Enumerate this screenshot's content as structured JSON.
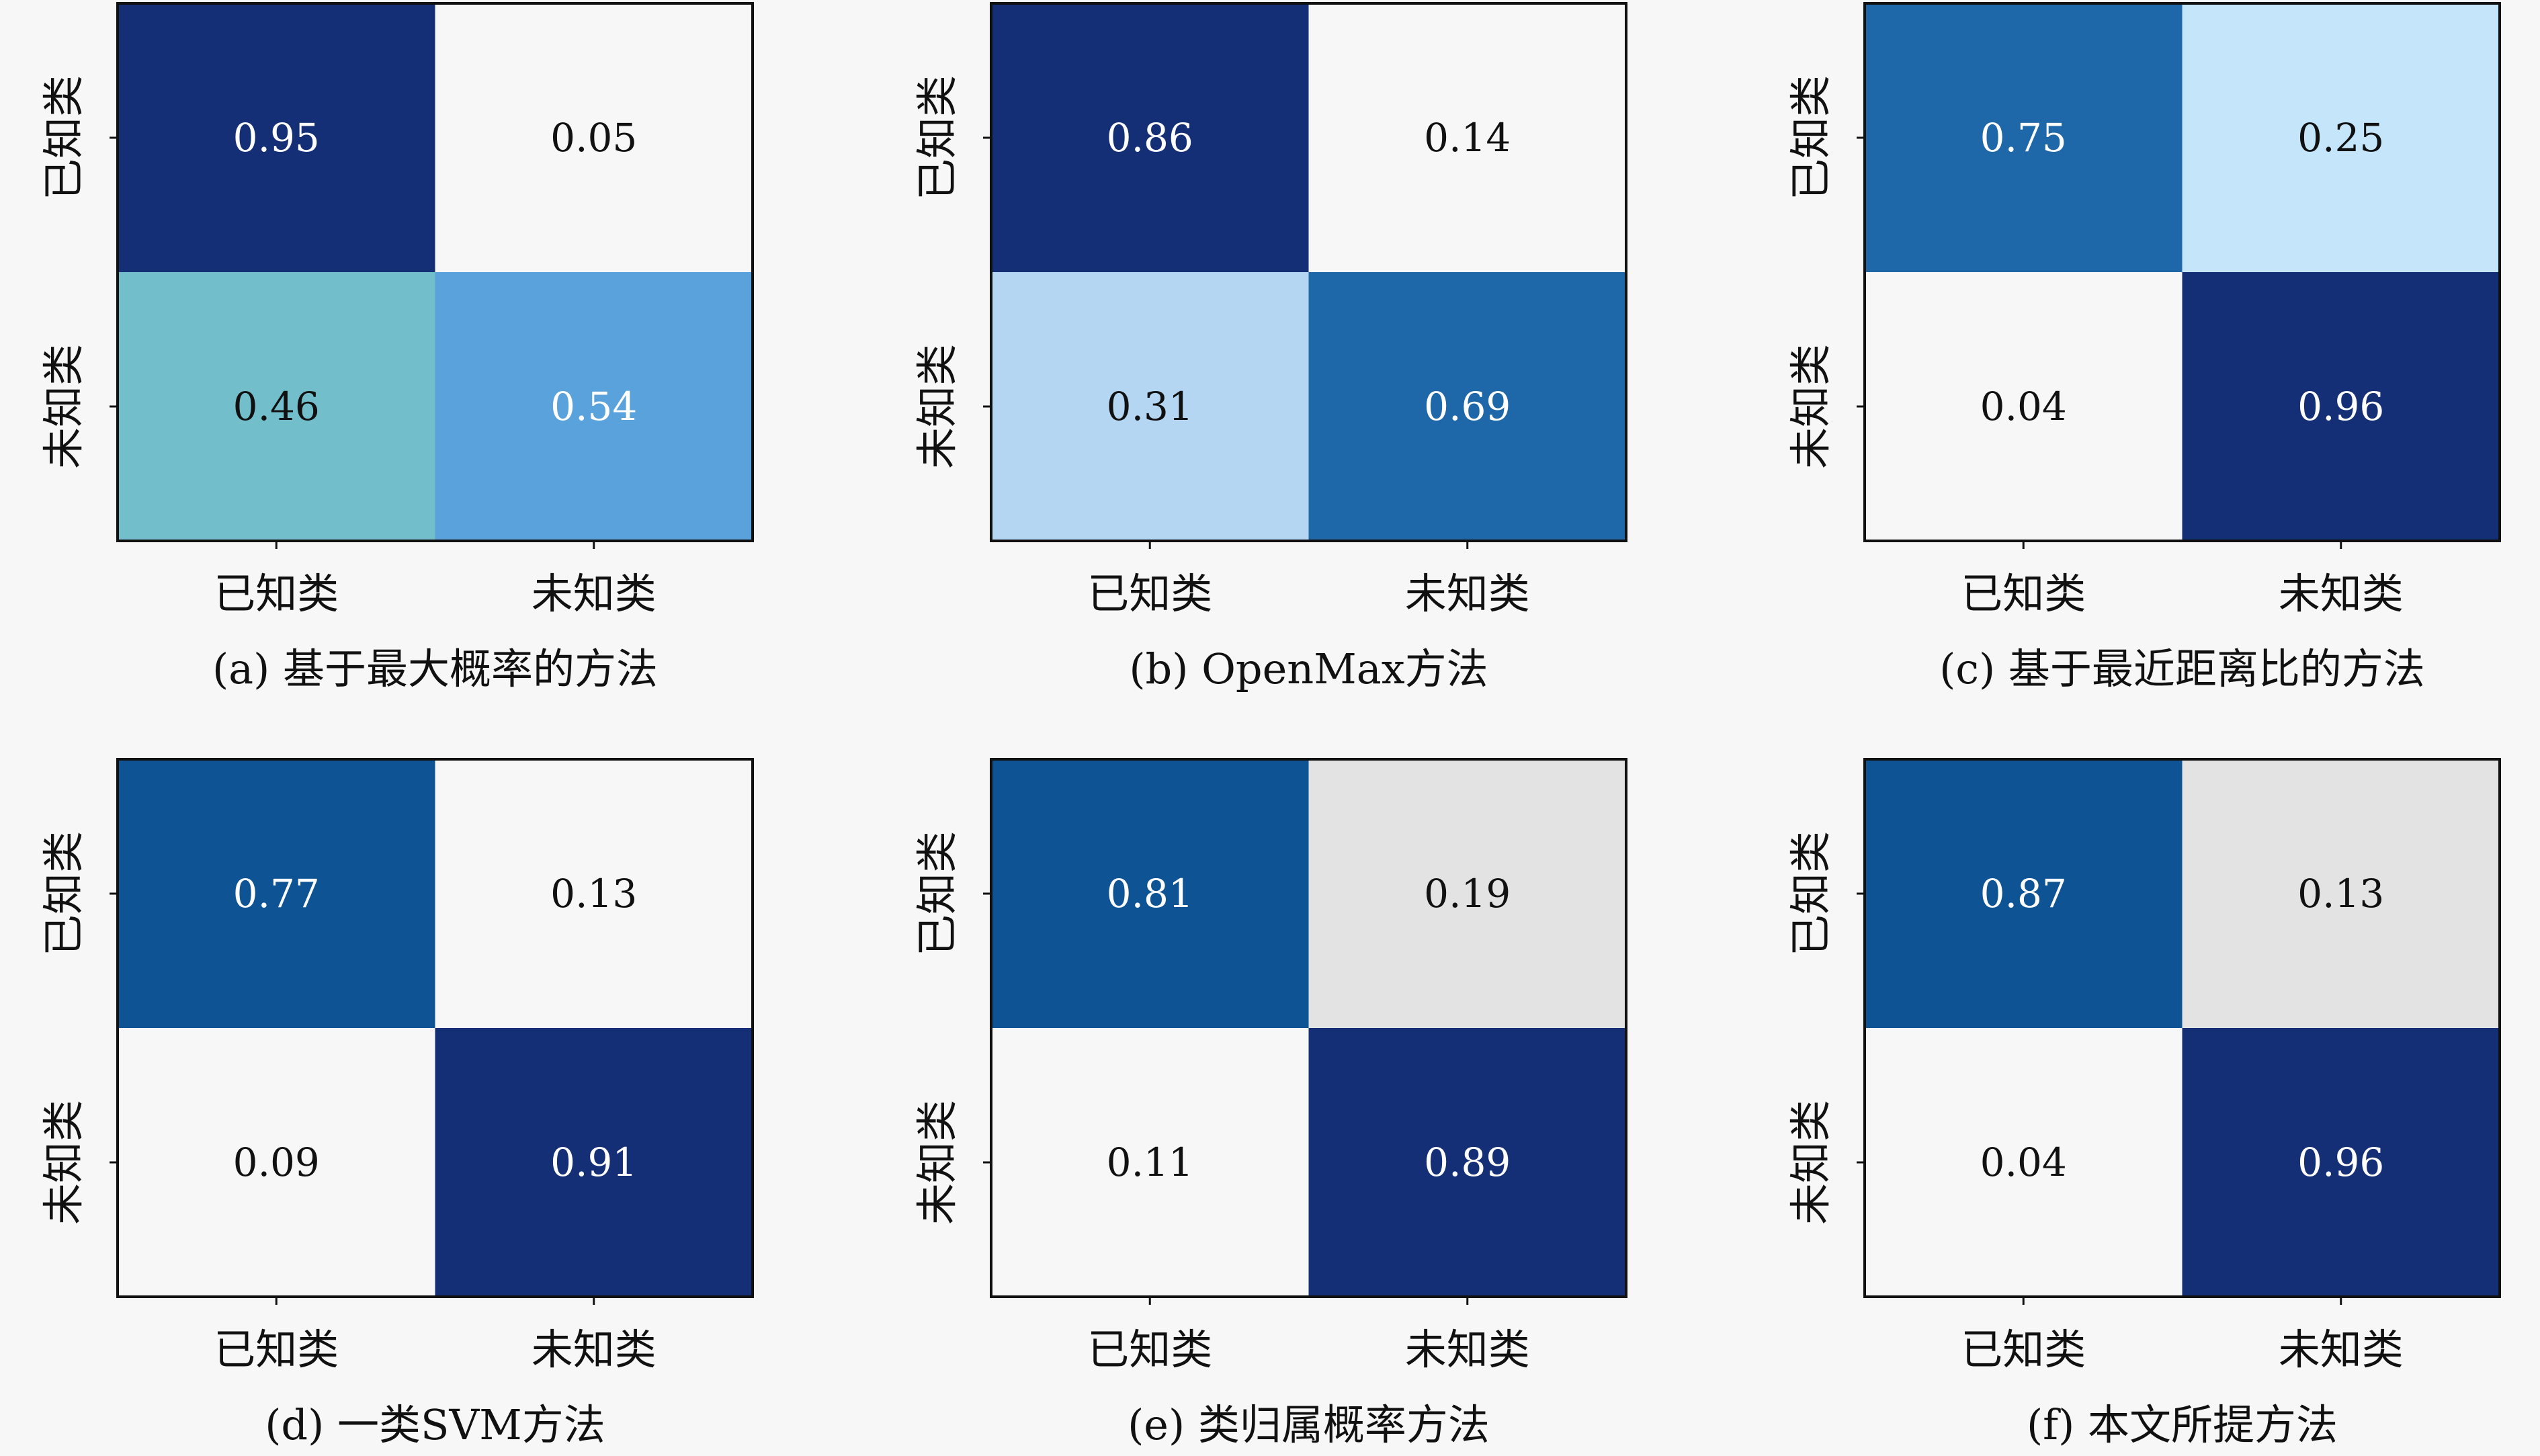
{
  "chart_data": [
    {
      "type": "heatmap",
      "caption": "(a) 基于最大概率的方法",
      "rows": [
        "已知类",
        "未知类"
      ],
      "cols": [
        "已知类",
        "未知类"
      ],
      "values": [
        [
          0.95,
          0.05
        ],
        [
          0.46,
          0.54
        ]
      ],
      "cell_colors": [
        [
          "#142f75",
          "#f7f7f7"
        ],
        [
          "#72bfcb",
          "#5aa2db"
        ]
      ],
      "label_colors": [
        [
          "#ffffff",
          "#111111"
        ],
        [
          "#111111",
          "#ffffff"
        ]
      ]
    },
    {
      "type": "heatmap",
      "caption": "(b) OpenMax方法",
      "rows": [
        "已知类",
        "未知类"
      ],
      "cols": [
        "已知类",
        "未知类"
      ],
      "values": [
        [
          0.86,
          0.14
        ],
        [
          0.31,
          0.69
        ]
      ],
      "cell_colors": [
        [
          "#142f75",
          "#f7f7f7"
        ],
        [
          "#b5d6f2",
          "#1e67a8"
        ]
      ],
      "label_colors": [
        [
          "#ffffff",
          "#111111"
        ],
        [
          "#111111",
          "#ffffff"
        ]
      ]
    },
    {
      "type": "heatmap",
      "caption": "(c) 基于最近距离比的方法",
      "rows": [
        "已知类",
        "未知类"
      ],
      "cols": [
        "已知类",
        "未知类"
      ],
      "values": [
        [
          0.75,
          0.25
        ],
        [
          0.04,
          0.96
        ]
      ],
      "cell_colors": [
        [
          "#1e67a8",
          "#c5e6fa"
        ],
        [
          "#f7f7f7",
          "#142f75"
        ]
      ],
      "label_colors": [
        [
          "#ffffff",
          "#111111"
        ],
        [
          "#111111",
          "#ffffff"
        ]
      ]
    },
    {
      "type": "heatmap",
      "caption": "(d) 一类SVM方法",
      "rows": [
        "已知类",
        "未知类"
      ],
      "cols": [
        "已知类",
        "未知类"
      ],
      "values": [
        [
          0.77,
          0.13
        ],
        [
          0.09,
          0.91
        ]
      ],
      "cell_colors": [
        [
          "#0e5394",
          "#f7f7f7"
        ],
        [
          "#f7f7f7",
          "#142f75"
        ]
      ],
      "label_colors": [
        [
          "#ffffff",
          "#111111"
        ],
        [
          "#111111",
          "#ffffff"
        ]
      ]
    },
    {
      "type": "heatmap",
      "caption": "(e) 类归属概率方法",
      "rows": [
        "已知类",
        "未知类"
      ],
      "cols": [
        "已知类",
        "未知类"
      ],
      "values": [
        [
          0.81,
          0.19
        ],
        [
          0.11,
          0.89
        ]
      ],
      "cell_colors": [
        [
          "#0e5394",
          "#e3e3e3"
        ],
        [
          "#f7f7f7",
          "#142f75"
        ]
      ],
      "label_colors": [
        [
          "#ffffff",
          "#111111"
        ],
        [
          "#111111",
          "#ffffff"
        ]
      ]
    },
    {
      "type": "heatmap",
      "caption": "(f) 本文所提方法",
      "rows": [
        "已知类",
        "未知类"
      ],
      "cols": [
        "已知类",
        "未知类"
      ],
      "values": [
        [
          0.87,
          0.13
        ],
        [
          0.04,
          0.96
        ]
      ],
      "cell_colors": [
        [
          "#0e5394",
          "#e3e3e3"
        ],
        [
          "#f7f7f7",
          "#142f75"
        ]
      ],
      "label_colors": [
        [
          "#ffffff",
          "#111111"
        ],
        [
          "#111111",
          "#ffffff"
        ]
      ]
    }
  ]
}
